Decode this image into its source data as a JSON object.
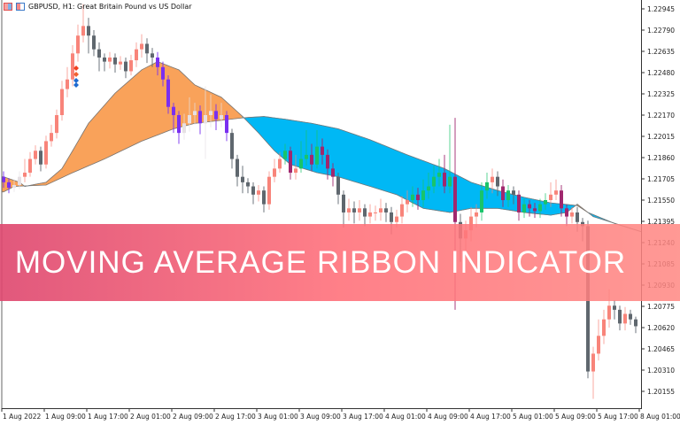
{
  "header": {
    "title": "GBPUSD, H1:  Great Britain Pound vs US Dollar",
    "icons": [
      "chart-window-icon",
      "one-click-trading-icon"
    ]
  },
  "banner": {
    "text": "MOVING AVERAGE RIBBON INDICATOR"
  },
  "colors": {
    "bull": "#f8847a",
    "bear": "#5f676e",
    "ribbon_up": "#f9a25a",
    "ribbon_down": "#00b8f5",
    "bear_in_up_ribbon": "#7a2ff0",
    "bull_in_up_ribbon": "#e6e0e4",
    "bull_in_down_ribbon": "#19c46a",
    "bear_in_down_ribbon": "#a0286e",
    "banner_left": "#de466e",
    "banner_right": "#ff8782"
  },
  "chart_data": {
    "type": "candlestick",
    "symbol": "GBPUSD",
    "timeframe": "H1",
    "ylim": [
      1.2005,
      1.23
    ],
    "y_ticks": [
      "1.22945",
      "1.22790",
      "1.22635",
      "1.22480",
      "1.22325",
      "1.22170",
      "1.22015",
      "1.21860",
      "1.21705",
      "1.21550",
      "1.21395",
      "1.21240",
      "1.21085",
      "1.20930",
      "1.20775",
      "1.20620",
      "1.20465",
      "1.20310",
      "1.20155"
    ],
    "x_ticks": [
      "1 Aug 2022",
      "1 Aug 09:00",
      "1 Aug 17:00",
      "2 Aug 01:00",
      "2 Aug 09:00",
      "2 Aug 17:00",
      "3 Aug 01:00",
      "3 Aug 09:00",
      "3 Aug 17:00",
      "4 Aug 01:00",
      "4 Aug 09:00",
      "4 Aug 17:00",
      "5 Aug 01:00",
      "5 Aug 09:00",
      "5 Aug 17:00",
      "8 Aug 01:00"
    ],
    "x_tick_every_n_bars": 8,
    "grid": false,
    "candles_ohlc": [
      [
        1.2172,
        1.2176,
        1.2164,
        1.2168
      ],
      [
        1.2168,
        1.2171,
        1.216,
        1.2164
      ],
      [
        1.2164,
        1.217,
        1.2161,
        1.2166
      ],
      [
        1.2166,
        1.2176,
        1.2163,
        1.2172
      ],
      [
        1.2172,
        1.2185,
        1.2168,
        1.2175
      ],
      [
        1.2175,
        1.219,
        1.2172,
        1.2185
      ],
      [
        1.2185,
        1.2195,
        1.2181,
        1.2191
      ],
      [
        1.2191,
        1.2194,
        1.2176,
        1.2181
      ],
      [
        1.2181,
        1.2202,
        1.2178,
        1.2198
      ],
      [
        1.2198,
        1.221,
        1.2194,
        1.2204
      ],
      [
        1.2204,
        1.2221,
        1.22,
        1.2217
      ],
      [
        1.2217,
        1.2242,
        1.2213,
        1.2236
      ],
      [
        1.2236,
        1.2252,
        1.223,
        1.2243
      ],
      [
        1.2243,
        1.2268,
        1.2238,
        1.2262
      ],
      [
        1.2262,
        1.2283,
        1.2256,
        1.2275
      ],
      [
        1.2275,
        1.2298,
        1.227,
        1.2282
      ],
      [
        1.2282,
        1.2288,
        1.2262,
        1.2275
      ],
      [
        1.2275,
        1.2279,
        1.226,
        1.2265
      ],
      [
        1.2265,
        1.227,
        1.2249,
        1.2259
      ],
      [
        1.2259,
        1.2262,
        1.2249,
        1.2256
      ],
      [
        1.2256,
        1.2263,
        1.2251,
        1.2259
      ],
      [
        1.2259,
        1.2262,
        1.2248,
        1.2254
      ],
      [
        1.2254,
        1.226,
        1.225,
        1.2256
      ],
      [
        1.2256,
        1.2259,
        1.2244,
        1.2249
      ],
      [
        1.2249,
        1.2261,
        1.2246,
        1.2257
      ],
      [
        1.2257,
        1.227,
        1.2252,
        1.2265
      ],
      [
        1.2265,
        1.2276,
        1.2259,
        1.2269
      ],
      [
        1.2269,
        1.2273,
        1.2255,
        1.2262
      ],
      [
        1.2262,
        1.2266,
        1.2252,
        1.2259
      ],
      [
        1.2259,
        1.2263,
        1.2246,
        1.2252
      ],
      [
        1.2252,
        1.2256,
        1.2238,
        1.2243
      ],
      [
        1.2243,
        1.2246,
        1.2218,
        1.2223
      ],
      [
        1.2223,
        1.2226,
        1.2204,
        1.2217
      ],
      [
        1.2217,
        1.222,
        1.2196,
        1.2204
      ],
      [
        1.2204,
        1.2218,
        1.2199,
        1.2211
      ],
      [
        1.2211,
        1.223,
        1.2205,
        1.2217
      ],
      [
        1.2217,
        1.2226,
        1.221,
        1.222
      ],
      [
        1.222,
        1.2224,
        1.2203,
        1.2211
      ],
      [
        1.2211,
        1.2238,
        1.2185,
        1.2217
      ],
      [
        1.2217,
        1.2232,
        1.2208,
        1.222
      ],
      [
        1.222,
        1.2225,
        1.2206,
        1.2214
      ],
      [
        1.2214,
        1.2226,
        1.2208,
        1.2217
      ],
      [
        1.2217,
        1.222,
        1.2198,
        1.2204
      ],
      [
        1.2204,
        1.2207,
        1.2178,
        1.2185
      ],
      [
        1.2185,
        1.2188,
        1.2165,
        1.2172
      ],
      [
        1.2172,
        1.218,
        1.216,
        1.2168
      ],
      [
        1.2168,
        1.2171,
        1.216,
        1.2165
      ],
      [
        1.2165,
        1.2168,
        1.2152,
        1.2159
      ],
      [
        1.2159,
        1.2166,
        1.2154,
        1.2162
      ],
      [
        1.2162,
        1.2165,
        1.2146,
        1.2152
      ],
      [
        1.2152,
        1.2176,
        1.2148,
        1.2172
      ],
      [
        1.2172,
        1.2185,
        1.2168,
        1.2178
      ],
      [
        1.2178,
        1.219,
        1.2175,
        1.2185
      ],
      [
        1.2185,
        1.2196,
        1.2181,
        1.2191
      ],
      [
        1.2191,
        1.2194,
        1.217,
        1.2175
      ],
      [
        1.2175,
        1.2188,
        1.217,
        1.2178
      ],
      [
        1.2178,
        1.2198,
        1.2175,
        1.2185
      ],
      [
        1.2185,
        1.2206,
        1.218,
        1.2188
      ],
      [
        1.2188,
        1.2196,
        1.2176,
        1.2181
      ],
      [
        1.2181,
        1.2206,
        1.2178,
        1.2194
      ],
      [
        1.2194,
        1.22,
        1.2181,
        1.2188
      ],
      [
        1.2188,
        1.2192,
        1.217,
        1.2178
      ],
      [
        1.2178,
        1.2182,
        1.2165,
        1.2172
      ],
      [
        1.2172,
        1.2175,
        1.2152,
        1.2159
      ],
      [
        1.2159,
        1.2162,
        1.2135,
        1.2146
      ],
      [
        1.2146,
        1.2156,
        1.214,
        1.2149
      ],
      [
        1.2149,
        1.2154,
        1.2138,
        1.2146
      ],
      [
        1.2146,
        1.2155,
        1.214,
        1.2149
      ],
      [
        1.2149,
        1.2152,
        1.2136,
        1.2143
      ],
      [
        1.2143,
        1.2152,
        1.2138,
        1.2146
      ],
      [
        1.2146,
        1.2151,
        1.214,
        1.2146
      ],
      [
        1.2146,
        1.2156,
        1.214,
        1.2149
      ],
      [
        1.2149,
        1.2153,
        1.2139,
        1.2146
      ],
      [
        1.2146,
        1.215,
        1.213,
        1.2139
      ],
      [
        1.2139,
        1.2148,
        1.2135,
        1.2143
      ],
      [
        1.2143,
        1.2158,
        1.2138,
        1.2152
      ],
      [
        1.2152,
        1.2162,
        1.2146,
        1.2155
      ],
      [
        1.2155,
        1.2165,
        1.215,
        1.2159
      ],
      [
        1.2159,
        1.2164,
        1.2148,
        1.2155
      ],
      [
        1.2155,
        1.217,
        1.215,
        1.2162
      ],
      [
        1.2162,
        1.2175,
        1.2156,
        1.2165
      ],
      [
        1.2165,
        1.218,
        1.216,
        1.2172
      ],
      [
        1.2172,
        1.2185,
        1.2165,
        1.2175
      ],
      [
        1.2175,
        1.2188,
        1.216,
        1.2165
      ],
      [
        1.2165,
        1.221,
        1.216,
        1.2172
      ],
      [
        1.2172,
        1.2215,
        1.2075,
        1.2139
      ],
      [
        1.2139,
        1.2145,
        1.211,
        1.2127
      ],
      [
        1.2127,
        1.214,
        1.2115,
        1.2133
      ],
      [
        1.2133,
        1.215,
        1.2125,
        1.2143
      ],
      [
        1.2143,
        1.2152,
        1.2135,
        1.2146
      ],
      [
        1.2146,
        1.2168,
        1.214,
        1.2162
      ],
      [
        1.2162,
        1.2175,
        1.2156,
        1.2168
      ],
      [
        1.2168,
        1.2178,
        1.216,
        1.2172
      ],
      [
        1.2172,
        1.2176,
        1.2158,
        1.2165
      ],
      [
        1.2165,
        1.217,
        1.215,
        1.2155
      ],
      [
        1.2155,
        1.2166,
        1.215,
        1.2162
      ],
      [
        1.2162,
        1.2165,
        1.2152,
        1.2159
      ],
      [
        1.2159,
        1.2162,
        1.214,
        1.2146
      ],
      [
        1.2146,
        1.2156,
        1.2142,
        1.2152
      ],
      [
        1.2152,
        1.2155,
        1.2143,
        1.2149
      ],
      [
        1.2149,
        1.2153,
        1.2142,
        1.2147
      ],
      [
        1.2147,
        1.2156,
        1.2142,
        1.2152
      ],
      [
        1.2152,
        1.216,
        1.2148,
        1.2155
      ],
      [
        1.2155,
        1.2168,
        1.215,
        1.2159
      ],
      [
        1.2159,
        1.217,
        1.2155,
        1.2162
      ],
      [
        1.2162,
        1.2166,
        1.2143,
        1.2149
      ],
      [
        1.2149,
        1.2152,
        1.2136,
        1.2143
      ],
      [
        1.2143,
        1.215,
        1.2138,
        1.2146
      ],
      [
        1.2146,
        1.215,
        1.2132,
        1.2139
      ],
      [
        1.2139,
        1.2142,
        1.2125,
        1.2136
      ],
      [
        1.2136,
        1.214,
        1.2025,
        1.203
      ],
      [
        1.203,
        1.2048,
        1.201,
        1.2043
      ],
      [
        1.2043,
        1.2068,
        1.2038,
        1.2056
      ],
      [
        1.2056,
        1.2075,
        1.205,
        1.2068
      ],
      [
        1.2068,
        1.209,
        1.2062,
        1.2078
      ],
      [
        1.2078,
        1.2082,
        1.2068,
        1.2075
      ],
      [
        1.2075,
        1.2078,
        1.206,
        1.2065
      ],
      [
        1.2065,
        1.2077,
        1.206,
        1.2072
      ],
      [
        1.2072,
        1.2075,
        1.2064,
        1.2068
      ],
      [
        1.2068,
        1.207,
        1.2058,
        1.2063
      ]
    ],
    "ribbon_fast_ma": [
      [
        0,
        1.2172
      ],
      [
        3,
        1.2168
      ],
      [
        4,
        1.2165
      ],
      [
        8,
        1.2168
      ],
      [
        11,
        1.2178
      ],
      [
        13,
        1.2191
      ],
      [
        16,
        1.2211
      ],
      [
        21,
        1.2233
      ],
      [
        26,
        1.225
      ],
      [
        29,
        1.2256
      ],
      [
        33,
        1.225
      ],
      [
        36,
        1.2239
      ],
      [
        41,
        1.223
      ],
      [
        45,
        1.2216
      ],
      [
        48,
        1.2204
      ],
      [
        51,
        1.2191
      ],
      [
        54,
        1.2181
      ],
      [
        59,
        1.2175
      ],
      [
        63,
        1.2172
      ],
      [
        69,
        1.2165
      ],
      [
        74,
        1.2159
      ],
      [
        79,
        1.2149
      ],
      [
        84,
        1.2146
      ],
      [
        88,
        1.2149
      ],
      [
        93,
        1.2149
      ],
      [
        98,
        1.2146
      ],
      [
        103,
        1.2144
      ],
      [
        106,
        1.2146
      ],
      [
        108,
        1.2152
      ],
      [
        111,
        1.2143
      ],
      [
        120,
        1.2132
      ]
    ],
    "ribbon_slow_ma": [
      [
        0,
        1.2161
      ],
      [
        2,
        1.2165
      ],
      [
        8,
        1.2166
      ],
      [
        13,
        1.2175
      ],
      [
        19,
        1.2185
      ],
      [
        26,
        1.2198
      ],
      [
        32,
        1.2207
      ],
      [
        36,
        1.2211
      ],
      [
        45,
        1.2215
      ],
      [
        49,
        1.2216
      ],
      [
        53,
        1.2214
      ],
      [
        58,
        1.2211
      ],
      [
        63,
        1.2207
      ],
      [
        69,
        1.2199
      ],
      [
        76,
        1.2188
      ],
      [
        83,
        1.2178
      ],
      [
        88,
        1.2168
      ],
      [
        93,
        1.2162
      ],
      [
        98,
        1.2157
      ],
      [
        103,
        1.2153
      ],
      [
        108,
        1.2151
      ],
      [
        110,
        1.2146
      ],
      [
        115,
        1.2138
      ],
      [
        120,
        1.2132
      ]
    ]
  }
}
